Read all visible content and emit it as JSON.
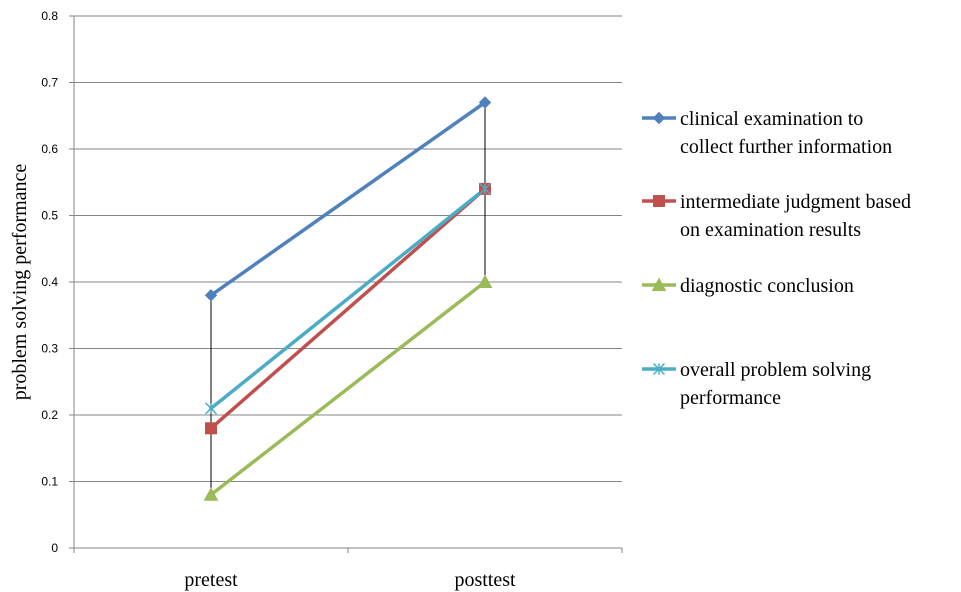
{
  "chart_data": {
    "type": "line",
    "categories": [
      "pretest",
      "posttest"
    ],
    "ylabel": "problem solving performance",
    "ylim": [
      0,
      0.8
    ],
    "yticks": [
      "0",
      "0.1",
      "0.2",
      "0.3",
      "0.4",
      "0.5",
      "0.6",
      "0.7",
      "0.8"
    ],
    "grid": true,
    "legend_position": "right",
    "high_low_lines": true,
    "series": [
      {
        "name": "clinical examination to collect further information",
        "legend_lines": [
          "clinical examination to",
          "collect further information"
        ],
        "values": [
          0.38,
          0.67
        ],
        "color": "#4F81BD",
        "marker": "diamond"
      },
      {
        "name": "intermediate judgment based on examination results",
        "legend_lines": [
          "intermediate judgment based",
          "on examination results"
        ],
        "values": [
          0.18,
          0.54
        ],
        "color": "#C0504D",
        "marker": "square"
      },
      {
        "name": "diagnostic conclusion",
        "legend_lines": [
          "diagnostic conclusion"
        ],
        "values": [
          0.08,
          0.4
        ],
        "color": "#9BBB59",
        "marker": "triangle"
      },
      {
        "name": "overall problem solving performance",
        "legend_lines": [
          "overall problem solving",
          "performance"
        ],
        "values": [
          0.21,
          0.54
        ],
        "color": "#4BACC6",
        "marker": "asterisk"
      }
    ]
  }
}
